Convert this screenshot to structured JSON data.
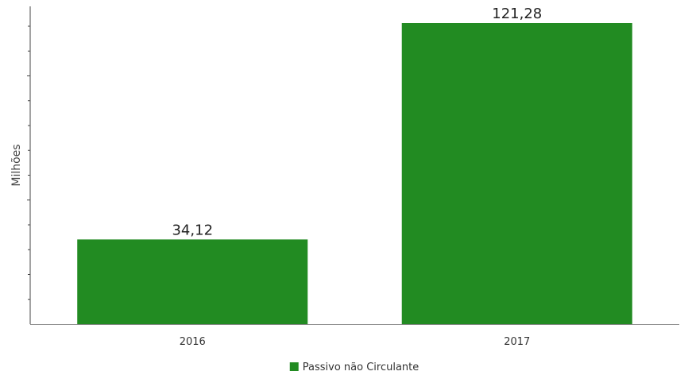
{
  "chart_data": {
    "type": "bar",
    "categories": [
      "2016",
      "2017"
    ],
    "series": [
      {
        "name": "Passivo não Circulante",
        "values": [
          34.12,
          121.28
        ],
        "labels": [
          "34,12",
          "121,28"
        ],
        "color": "#228b22"
      }
    ],
    "title": "",
    "xlabel": "",
    "ylabel": "Milhões",
    "ylim": [
      0,
      128
    ],
    "grid": false,
    "legend": "bottom-center"
  }
}
